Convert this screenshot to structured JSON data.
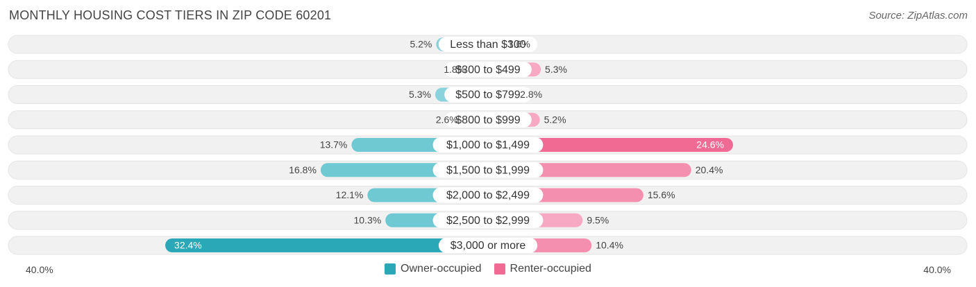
{
  "title": "MONTHLY HOUSING COST TIERS IN ZIP CODE 60201",
  "source": "Source: ZipAtlas.com",
  "colors": {
    "owner_dark": "#2aa8b8",
    "owner": "#6fc9d3",
    "owner_light": "#8ad3dc",
    "renter_dark": "#f06a93",
    "renter": "#f58fb0",
    "renter_light": "#f7a8c2",
    "track": "#f1f1f1"
  },
  "axis": {
    "left_label": "40.0%",
    "right_label": "40.0%"
  },
  "legend": {
    "owner_label": "Owner-occupied",
    "renter_label": "Renter-occupied"
  },
  "chart_data": {
    "type": "bar",
    "orientation": "diverging-horizontal",
    "title": "MONTHLY HOUSING COST TIERS IN ZIP CODE 60201",
    "xlim": [
      -40,
      40
    ],
    "categories": [
      "Less than $300",
      "$300 to $499",
      "$500 to $799",
      "$800 to $999",
      "$1,000 to $1,499",
      "$1,500 to $1,999",
      "$2,000 to $2,499",
      "$2,500 to $2,999",
      "$3,000 or more"
    ],
    "series": [
      {
        "name": "Owner-occupied",
        "values": [
          5.2,
          1.8,
          5.3,
          2.6,
          13.7,
          16.8,
          12.1,
          10.3,
          32.4
        ]
      },
      {
        "name": "Renter-occupied",
        "values": [
          1.6,
          5.3,
          2.8,
          5.2,
          24.6,
          20.4,
          15.6,
          9.5,
          10.4
        ]
      }
    ],
    "legend_position": "bottom-center"
  }
}
